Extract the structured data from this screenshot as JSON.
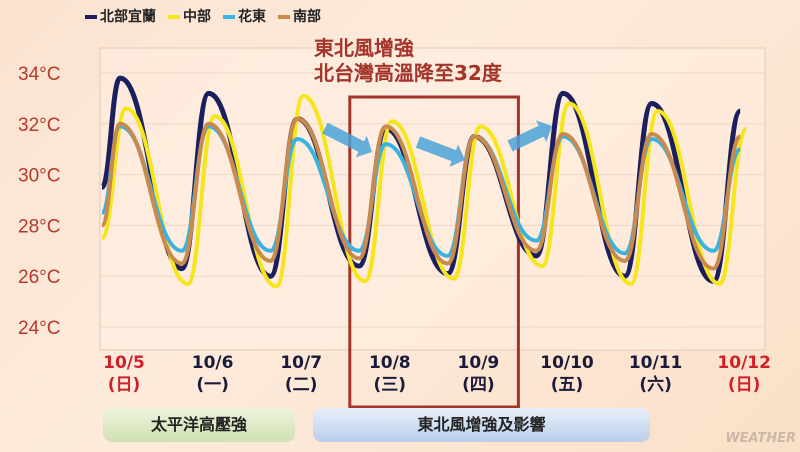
{
  "chart_data": {
    "type": "line",
    "title": "",
    "ylabel": "",
    "xlabel": "",
    "ylim": [
      24,
      35
    ],
    "yticks": [
      "24°C",
      "26°C",
      "28°C",
      "30°C",
      "32°C",
      "34°C"
    ],
    "ytick_values": [
      24,
      26,
      28,
      30,
      32,
      34
    ],
    "grid": true,
    "legend_placement": "top-left",
    "x_categories": [
      {
        "date": "10/5",
        "weekday": "(日)",
        "holiday": true
      },
      {
        "date": "10/6",
        "weekday": "(一)",
        "holiday": false
      },
      {
        "date": "10/7",
        "weekday": "(二)",
        "holiday": false
      },
      {
        "date": "10/8",
        "weekday": "(三)",
        "holiday": false
      },
      {
        "date": "10/9",
        "weekday": "(四)",
        "holiday": false
      },
      {
        "date": "10/10",
        "weekday": "(五)",
        "holiday": false
      },
      {
        "date": "10/11",
        "weekday": "(六)",
        "holiday": false
      },
      {
        "date": "10/12",
        "weekday": "(日)",
        "holiday": true
      }
    ],
    "series": [
      {
        "name": "北部宜蘭",
        "color": "#1b1f5e",
        "start": 29.5,
        "daily_max": [
          33.8,
          33.2,
          32.2,
          31.8,
          31.5,
          33.2,
          32.8,
          32.5
        ],
        "daily_min": [
          26.3,
          26.0,
          26.4,
          26.1,
          26.8,
          26.0,
          25.8
        ]
      },
      {
        "name": "中部",
        "color": "#f7e51b",
        "start": 27.5,
        "daily_max": [
          32.6,
          32.3,
          33.1,
          32.1,
          31.9,
          32.8,
          32.5,
          31.8
        ],
        "daily_min": [
          25.7,
          25.6,
          25.8,
          25.9,
          26.4,
          25.7,
          25.7
        ]
      },
      {
        "name": "花東",
        "color": "#3bb3e0",
        "start": 28.5,
        "daily_max": [
          31.9,
          31.9,
          31.4,
          31.2,
          31.5,
          31.5,
          31.4,
          31.0
        ],
        "daily_min": [
          27.0,
          27.0,
          27.0,
          26.8,
          27.4,
          26.9,
          27.0
        ]
      },
      {
        "name": "南部",
        "color": "#c98a4e",
        "start": 28.0,
        "daily_max": [
          32.0,
          32.0,
          32.2,
          31.9,
          31.5,
          31.6,
          31.6,
          31.5
        ],
        "daily_min": [
          26.5,
          26.6,
          26.7,
          26.5,
          27.0,
          26.6,
          26.3
        ]
      }
    ],
    "highlight_range": [
      "10/8",
      "10/9"
    ],
    "annotation": [
      "東北風增強",
      "北台灣高溫降至32度"
    ]
  },
  "periods": [
    "太平洋高壓強",
    "東北風增強及影響"
  ],
  "watermark": "WEATHER",
  "colors": {
    "axis_label": "#b5392c",
    "holiday": "#d0212a",
    "highlight_box": "#a3342a",
    "arrow": "#4aa3d8"
  }
}
